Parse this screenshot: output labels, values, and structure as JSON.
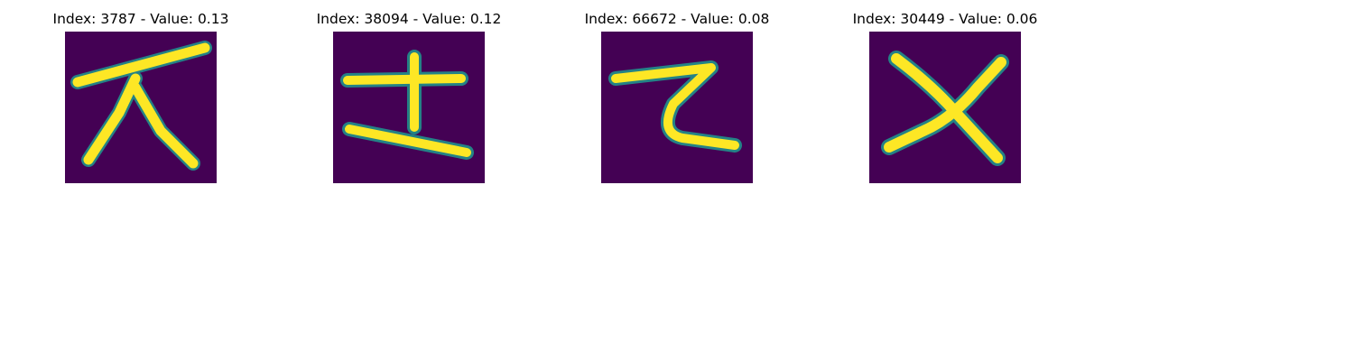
{
  "chart_data": {
    "type": "image_grid",
    "colormap": "viridis",
    "panels": [
      {
        "index": 3787,
        "value": 0.13,
        "title": "Index: 3787 - Value: 0.13"
      },
      {
        "index": 38094,
        "value": 0.12,
        "title": "Index: 38094 - Value: 0.12"
      },
      {
        "index": 66672,
        "value": 0.08,
        "title": "Index: 66672 - Value: 0.08"
      },
      {
        "index": 30449,
        "value": 0.06,
        "title": "Index: 30449 - Value: 0.06"
      }
    ]
  },
  "colors": {
    "background": "#440154",
    "stroke_core": "#fde725",
    "stroke_edge": "#21918c"
  }
}
